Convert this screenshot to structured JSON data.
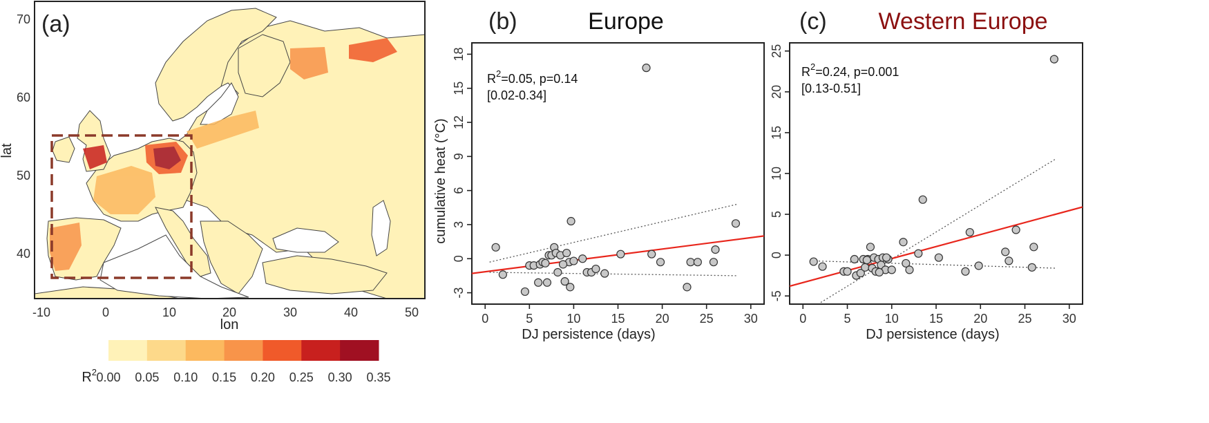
{
  "colors": {
    "fit": "#e8261c",
    "ci": "#555555",
    "point_fill": "#c8c8c8",
    "title_c": "#8b1010",
    "title_b": "#111111",
    "box": "#8b3a2a"
  },
  "map": {
    "letter": "(a)",
    "xlabel": "lon",
    "ylabel": "lat",
    "xticks": [
      "-10",
      "0",
      "10",
      "20",
      "30",
      "40",
      "50"
    ],
    "yticks": [
      "70",
      "60",
      "50",
      "40"
    ],
    "colorbar": {
      "label": "R",
      "label_sup": "2",
      "ticks": [
        "0.00",
        "0.05",
        "0.10",
        "0.15",
        "0.20",
        "0.25",
        "0.30",
        "0.35"
      ],
      "colors": [
        "#fff2b8",
        "#fdd98a",
        "#fcb95f",
        "#f8944a",
        "#f05a2a",
        "#c8201e",
        "#a01022"
      ]
    }
  },
  "chart_data": [
    {
      "type": "scatter",
      "panel": "b",
      "letter": "(b)",
      "title": "Europe",
      "xlabel": "DJ persistence (days)",
      "ylabel": "cumulative heat (°C)",
      "xlim": [
        -1.5,
        31.5
      ],
      "ylim": [
        -4,
        19
      ],
      "xticks": [
        0,
        5,
        10,
        15,
        20,
        25,
        30
      ],
      "yticks": [
        -3,
        0,
        3,
        6,
        9,
        12,
        15,
        18
      ],
      "stats": {
        "line1_prefix": "R",
        "line1_sup": "2",
        "line1_rest": "=0.05, p=0.14",
        "line2": "[0.02-0.34]"
      },
      "fit": {
        "x": [
          -1.5,
          31.5
        ],
        "y": [
          -1.3,
          2.0
        ]
      },
      "ci_upper": {
        "x": [
          0.5,
          28.5
        ],
        "y": [
          -0.3,
          4.8
        ]
      },
      "ci_lower": {
        "x": [
          0.5,
          28.5
        ],
        "y": [
          -1.2,
          -1.5
        ]
      },
      "points": {
        "x": [
          1.2,
          2.0,
          4.5,
          5.0,
          5.5,
          6.0,
          6.2,
          6.5,
          7.0,
          7.2,
          7.5,
          7.8,
          8.0,
          8.2,
          8.5,
          9.0,
          9.2,
          9.5,
          9.7,
          10.0,
          11.0,
          11.5,
          12.0,
          12.5,
          13.5,
          15.3,
          18.2,
          18.8,
          19.8,
          22.8,
          23.2,
          24.0,
          25.8,
          26.0,
          28.3,
          8.8,
          6.8,
          9.6
        ],
        "y": [
          1.0,
          -1.4,
          -2.9,
          -0.6,
          -0.6,
          -2.1,
          -0.5,
          -0.3,
          -2.1,
          0.3,
          0.3,
          1.0,
          0.5,
          -1.2,
          0.3,
          -2.0,
          0.5,
          -0.3,
          3.3,
          -0.2,
          0.0,
          -1.2,
          -1.2,
          -0.9,
          -1.3,
          0.4,
          16.8,
          0.4,
          -0.3,
          -2.5,
          -0.3,
          -0.3,
          -0.3,
          0.8,
          3.1,
          -0.5,
          -0.4,
          -2.5
        ]
      }
    },
    {
      "type": "scatter",
      "panel": "c",
      "letter": "(c)",
      "title": "Western Europe",
      "xlabel": "DJ persistence (days)",
      "ylabel": "",
      "xlim": [
        -1.5,
        31.5
      ],
      "ylim": [
        -6,
        26
      ],
      "xticks": [
        0,
        5,
        10,
        15,
        20,
        25,
        30
      ],
      "yticks": [
        -5,
        0,
        5,
        10,
        15,
        20,
        25
      ],
      "stats": {
        "line1_prefix": "R",
        "line1_sup": "2",
        "line1_rest": "=0.24, p=0.001",
        "line2": "[0.13-0.51]"
      },
      "fit": {
        "x": [
          -1.5,
          31.5
        ],
        "y": [
          -3.8,
          5.9
        ]
      },
      "ci_upper": {
        "x": [
          2.0,
          28.5
        ],
        "y": [
          -5.8,
          11.8
        ]
      },
      "ci_lower": {
        "x": [
          1.0,
          28.5
        ],
        "y": [
          -0.7,
          -1.6
        ]
      },
      "points": {
        "x": [
          1.2,
          2.2,
          4.6,
          5.0,
          5.8,
          6.0,
          6.5,
          6.8,
          7.0,
          7.3,
          7.6,
          7.8,
          8.0,
          8.2,
          8.5,
          8.8,
          9.0,
          9.3,
          9.6,
          10.0,
          11.3,
          11.6,
          12.0,
          13.0,
          13.5,
          15.3,
          18.3,
          18.8,
          19.8,
          22.8,
          23.2,
          24.0,
          25.8,
          26.0,
          28.3,
          9.4,
          7.2,
          8.6
        ],
        "y": [
          -0.8,
          -1.4,
          -2.0,
          -2.0,
          -0.5,
          -2.5,
          -2.2,
          -0.5,
          -1.5,
          -0.5,
          1.0,
          -1.6,
          -0.3,
          -2.0,
          -0.5,
          -1.2,
          -0.3,
          -1.8,
          -0.5,
          -1.8,
          1.6,
          -1.0,
          -1.8,
          0.2,
          6.8,
          -0.3,
          -2.0,
          2.8,
          -1.3,
          0.4,
          -0.7,
          3.1,
          -1.5,
          1.0,
          24.0,
          -0.3,
          -0.6,
          -2.1
        ]
      }
    }
  ]
}
